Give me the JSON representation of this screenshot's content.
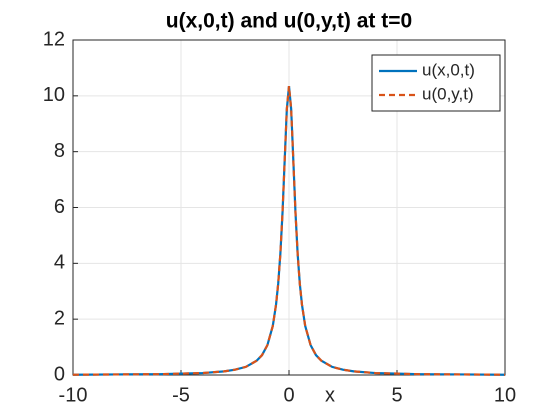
{
  "chart_data": {
    "type": "line",
    "title": "u(x,0,t) and u(0,y,t) at t=0",
    "x_label": "x",
    "x": [
      -10,
      -8,
      -6,
      -5,
      -4,
      -3,
      -2.5,
      -2,
      -1.5,
      -1.25,
      -1,
      -0.75,
      -0.6,
      -0.5,
      -0.4,
      -0.3,
      -0.2,
      -0.1,
      0,
      0.1,
      0.2,
      0.3,
      0.4,
      0.5,
      0.6,
      0.75,
      1,
      1.25,
      1.5,
      2,
      2.5,
      3,
      4,
      5,
      6,
      8,
      10
    ],
    "series": [
      {
        "name": "u(x,0,t)",
        "color": "#0072bd",
        "dash": false,
        "values": [
          0.01,
          0.02,
          0.03,
          0.05,
          0.07,
          0.13,
          0.19,
          0.29,
          0.51,
          0.71,
          1.07,
          1.76,
          2.52,
          3.27,
          4.34,
          5.82,
          7.69,
          9.53,
          10.35,
          9.53,
          7.69,
          5.82,
          4.34,
          3.27,
          2.52,
          1.76,
          1.07,
          0.71,
          0.51,
          0.29,
          0.19,
          0.13,
          0.07,
          0.05,
          0.03,
          0.02,
          0.01
        ]
      },
      {
        "name": "u(0,y,t)",
        "color": "#d95319",
        "dash": true,
        "values": [
          0.01,
          0.02,
          0.03,
          0.05,
          0.07,
          0.13,
          0.19,
          0.29,
          0.51,
          0.71,
          1.07,
          1.76,
          2.52,
          3.27,
          4.34,
          5.82,
          7.69,
          9.53,
          10.35,
          9.53,
          7.69,
          5.82,
          4.34,
          3.27,
          2.52,
          1.76,
          1.07,
          0.71,
          0.51,
          0.29,
          0.19,
          0.13,
          0.07,
          0.05,
          0.03,
          0.02,
          0.01
        ]
      }
    ],
    "xlim": [
      -10,
      10
    ],
    "xticks": [
      -10,
      -5,
      0,
      5,
      10
    ],
    "ylim": [
      0,
      12
    ],
    "yticks": [
      0,
      2,
      4,
      6,
      8,
      10,
      12
    ],
    "grid": true,
    "legend": "northeast"
  }
}
